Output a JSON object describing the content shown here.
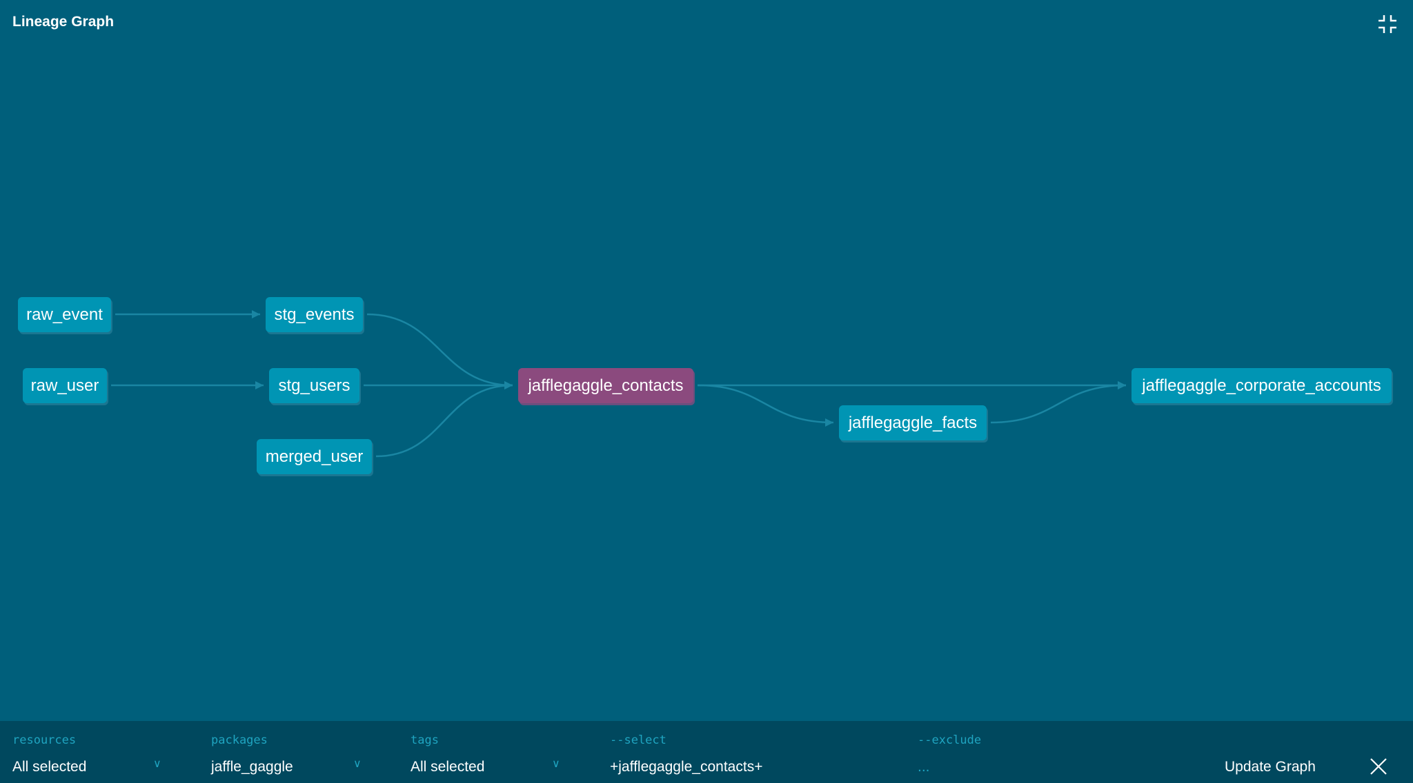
{
  "header": {
    "title": "Lineage Graph",
    "collapse_icon": "collapse-icon"
  },
  "nodes": [
    {
      "id": "raw_event",
      "label": "raw_event"
    },
    {
      "id": "stg_events",
      "label": "stg_events"
    },
    {
      "id": "raw_user",
      "label": "raw_user"
    },
    {
      "id": "stg_users",
      "label": "stg_users"
    },
    {
      "id": "merged_user",
      "label": "merged_user"
    },
    {
      "id": "jafflegaggle_contacts",
      "label": "jafflegaggle_contacts",
      "selected": true
    },
    {
      "id": "jafflegaggle_facts",
      "label": "jafflegaggle_facts"
    },
    {
      "id": "jafflegaggle_corporate_accounts",
      "label": "jafflegaggle_corporate_accounts"
    }
  ],
  "edges": [
    [
      "raw_event",
      "stg_events"
    ],
    [
      "raw_user",
      "stg_users"
    ],
    [
      "stg_events",
      "jafflegaggle_contacts"
    ],
    [
      "stg_users",
      "jafflegaggle_contacts"
    ],
    [
      "merged_user",
      "jafflegaggle_contacts"
    ],
    [
      "jafflegaggle_contacts",
      "jafflegaggle_facts"
    ],
    [
      "jafflegaggle_contacts",
      "jafflegaggle_corporate_accounts"
    ],
    [
      "jafflegaggle_facts",
      "jafflegaggle_corporate_accounts"
    ]
  ],
  "colors": {
    "background": "#005f7b",
    "node": "#0095b4",
    "selected_node": "#8b4a7e",
    "toolbar": "#00485e",
    "label": "#1fa4c0"
  },
  "toolbar": {
    "resources": {
      "label": "resources",
      "value": "All selected"
    },
    "packages": {
      "label": "packages",
      "value": "jaffle_gaggle"
    },
    "tags": {
      "label": "tags",
      "value": "All selected"
    },
    "select": {
      "label": "--select",
      "value": "+jafflegaggle_contacts+"
    },
    "exclude": {
      "label": "--exclude",
      "placeholder": "..."
    },
    "update_label": "Update Graph",
    "close_icon": "close-icon"
  }
}
